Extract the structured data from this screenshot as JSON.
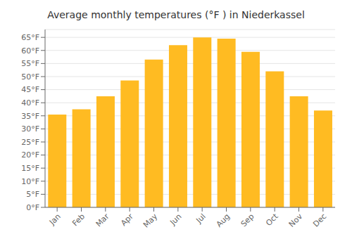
{
  "chart_data": {
    "type": "bar",
    "title": "Average monthly temperatures (°F ) in Niederkassel",
    "categories": [
      "Jan",
      "Feb",
      "Mar",
      "Apr",
      "May",
      "Jun",
      "Jul",
      "Aug",
      "Sep",
      "Oct",
      "Nov",
      "Dec"
    ],
    "values": [
      35.5,
      37.5,
      42.5,
      48.5,
      56.5,
      62.0,
      65.0,
      64.5,
      59.5,
      52.0,
      42.5,
      37.0
    ],
    "color": "#FFBB22",
    "ylim": [
      0,
      68
    ],
    "yticks": [
      {
        "value": 0,
        "label": "0°F"
      },
      {
        "value": 5,
        "label": "5°F"
      },
      {
        "value": 10,
        "label": "10°F"
      },
      {
        "value": 15,
        "label": "15°F"
      },
      {
        "value": 20,
        "label": "20°F"
      },
      {
        "value": 25,
        "label": "25°F"
      },
      {
        "value": 30,
        "label": "30°F"
      },
      {
        "value": 35,
        "label": "35°F"
      },
      {
        "value": 40,
        "label": "40°F"
      },
      {
        "value": 45,
        "label": "45°F"
      },
      {
        "value": 50,
        "label": "50°F"
      },
      {
        "value": 55,
        "label": "55°F"
      },
      {
        "value": 60,
        "label": "60°F"
      },
      {
        "value": 65,
        "label": "65°F"
      }
    ],
    "grid": true
  }
}
